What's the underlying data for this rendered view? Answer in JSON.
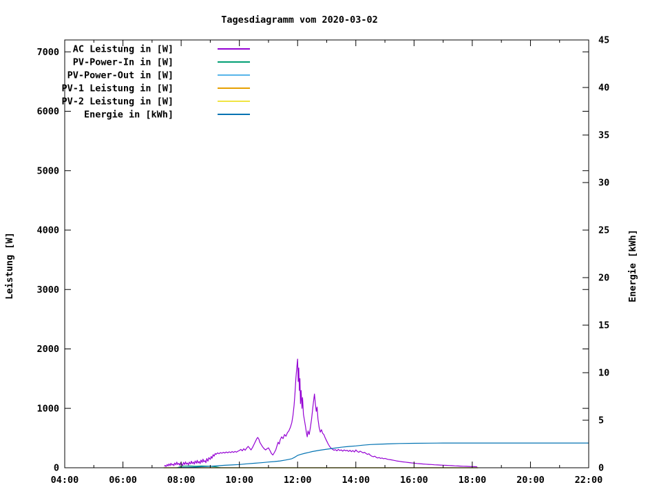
{
  "chart_data": {
    "type": "line",
    "title": "Tagesdiagramm vom 2020-03-02",
    "ylabel": "Leistung [W]",
    "y2label": "Energie [kWh]",
    "xlabel": "",
    "grid": false,
    "legend_position": "top-left-inside",
    "x_axis": {
      "range_hours": [
        4,
        22
      ],
      "major_ticks": [
        {
          "value": 4,
          "label": "04:00"
        },
        {
          "value": 6,
          "label": "06:00"
        },
        {
          "value": 8,
          "label": "08:00"
        },
        {
          "value": 10,
          "label": "10:00"
        },
        {
          "value": 12,
          "label": "12:00"
        },
        {
          "value": 14,
          "label": "14:00"
        },
        {
          "value": 16,
          "label": "16:00"
        },
        {
          "value": 18,
          "label": "18:00"
        },
        {
          "value": 20,
          "label": "20:00"
        },
        {
          "value": 22,
          "label": "22:00"
        }
      ],
      "minor_ticks": [
        5,
        7,
        9,
        11,
        13,
        15,
        17,
        19,
        21
      ]
    },
    "y_axis": {
      "range": [
        0,
        7200
      ],
      "ticks": [
        {
          "value": 0,
          "label": "0"
        },
        {
          "value": 1000,
          "label": "1000"
        },
        {
          "value": 2000,
          "label": "2000"
        },
        {
          "value": 3000,
          "label": "3000"
        },
        {
          "value": 4000,
          "label": "4000"
        },
        {
          "value": 5000,
          "label": "5000"
        },
        {
          "value": 6000,
          "label": "6000"
        },
        {
          "value": 7000,
          "label": "7000"
        }
      ]
    },
    "y2_axis": {
      "range": [
        0,
        45
      ],
      "ticks": [
        {
          "value": 0,
          "label": "0"
        },
        {
          "value": 5,
          "label": "5"
        },
        {
          "value": 10,
          "label": "10"
        },
        {
          "value": 15,
          "label": "15"
        },
        {
          "value": 20,
          "label": "20"
        },
        {
          "value": 25,
          "label": "25"
        },
        {
          "value": 30,
          "label": "30"
        },
        {
          "value": 35,
          "label": "35"
        },
        {
          "value": 40,
          "label": "40"
        },
        {
          "value": 45,
          "label": "45"
        }
      ]
    },
    "series": [
      {
        "id": "ac-leistung",
        "name": "AC Leistung in [W]",
        "color": "#9400d3",
        "axis": "y1",
        "points": [
          [
            7.42,
            25
          ],
          [
            7.45,
            40
          ],
          [
            7.48,
            20
          ],
          [
            7.52,
            55
          ],
          [
            7.55,
            30
          ],
          [
            7.58,
            65
          ],
          [
            7.62,
            35
          ],
          [
            7.65,
            75
          ],
          [
            7.68,
            45
          ],
          [
            7.72,
            60
          ],
          [
            7.75,
            35
          ],
          [
            7.78,
            80
          ],
          [
            7.82,
            50
          ],
          [
            7.85,
            95
          ],
          [
            7.88,
            55
          ],
          [
            7.92,
            75
          ],
          [
            7.95,
            40
          ],
          [
            7.98,
            85
          ],
          [
            8.02,
            60
          ],
          [
            8.05,
            35
          ],
          [
            8.08,
            90
          ],
          [
            8.12,
            55
          ],
          [
            8.15,
            100
          ],
          [
            8.18,
            60
          ],
          [
            8.22,
            80
          ],
          [
            8.25,
            45
          ],
          [
            8.28,
            95
          ],
          [
            8.32,
            65
          ],
          [
            8.35,
            110
          ],
          [
            8.38,
            70
          ],
          [
            8.42,
            95
          ],
          [
            8.45,
            60
          ],
          [
            8.48,
            115
          ],
          [
            8.52,
            75
          ],
          [
            8.55,
            125
          ],
          [
            8.58,
            80
          ],
          [
            8.62,
            105
          ],
          [
            8.65,
            70
          ],
          [
            8.68,
            130
          ],
          [
            8.72,
            90
          ],
          [
            8.75,
            145
          ],
          [
            8.78,
            100
          ],
          [
            8.82,
            120
          ],
          [
            8.85,
            85
          ],
          [
            8.88,
            155
          ],
          [
            8.92,
            110
          ],
          [
            8.95,
            170
          ],
          [
            9.0,
            140
          ],
          [
            9.03,
            190
          ],
          [
            9.06,
            160
          ],
          [
            9.1,
            220
          ],
          [
            9.13,
            195
          ],
          [
            9.17,
            240
          ],
          [
            9.2,
            225
          ],
          [
            9.25,
            250
          ],
          [
            9.3,
            235
          ],
          [
            9.35,
            255
          ],
          [
            9.4,
            245
          ],
          [
            9.45,
            260
          ],
          [
            9.5,
            248
          ],
          [
            9.55,
            265
          ],
          [
            9.6,
            252
          ],
          [
            9.65,
            268
          ],
          [
            9.7,
            255
          ],
          [
            9.75,
            272
          ],
          [
            9.8,
            258
          ],
          [
            9.85,
            275
          ],
          [
            9.9,
            262
          ],
          [
            9.95,
            280
          ],
          [
            10.0,
            290
          ],
          [
            10.05,
            310
          ],
          [
            10.1,
            285
          ],
          [
            10.15,
            320
          ],
          [
            10.2,
            295
          ],
          [
            10.25,
            330
          ],
          [
            10.3,
            360
          ],
          [
            10.35,
            330
          ],
          [
            10.4,
            300
          ],
          [
            10.45,
            340
          ],
          [
            10.5,
            390
          ],
          [
            10.55,
            440
          ],
          [
            10.6,
            490
          ],
          [
            10.63,
            510
          ],
          [
            10.67,
            480
          ],
          [
            10.7,
            430
          ],
          [
            10.75,
            390
          ],
          [
            10.8,
            350
          ],
          [
            10.85,
            320
          ],
          [
            10.9,
            300
          ],
          [
            10.95,
            320
          ],
          [
            11.0,
            335
          ],
          [
            11.05,
            290
          ],
          [
            11.1,
            240
          ],
          [
            11.15,
            215
          ],
          [
            11.2,
            255
          ],
          [
            11.25,
            300
          ],
          [
            11.3,
            380
          ],
          [
            11.33,
            430
          ],
          [
            11.37,
            400
          ],
          [
            11.4,
            470
          ],
          [
            11.45,
            520
          ],
          [
            11.5,
            490
          ],
          [
            11.55,
            560
          ],
          [
            11.6,
            530
          ],
          [
            11.65,
            590
          ],
          [
            11.7,
            620
          ],
          [
            11.75,
            680
          ],
          [
            11.8,
            760
          ],
          [
            11.84,
            880
          ],
          [
            11.88,
            1050
          ],
          [
            11.91,
            1250
          ],
          [
            11.94,
            1500
          ],
          [
            11.97,
            1680
          ],
          [
            12.0,
            1830
          ],
          [
            12.02,
            1450
          ],
          [
            12.04,
            1680
          ],
          [
            12.06,
            1300
          ],
          [
            12.08,
            1500
          ],
          [
            12.1,
            1080
          ],
          [
            12.12,
            1300
          ],
          [
            12.15,
            1000
          ],
          [
            12.17,
            1180
          ],
          [
            12.2,
            900
          ],
          [
            12.23,
            820
          ],
          [
            12.27,
            700
          ],
          [
            12.3,
            600
          ],
          [
            12.33,
            520
          ],
          [
            12.36,
            620
          ],
          [
            12.4,
            560
          ],
          [
            12.44,
            680
          ],
          [
            12.48,
            820
          ],
          [
            12.52,
            1000
          ],
          [
            12.55,
            1130
          ],
          [
            12.58,
            1240
          ],
          [
            12.61,
            1080
          ],
          [
            12.64,
            950
          ],
          [
            12.67,
            1020
          ],
          [
            12.7,
            820
          ],
          [
            12.74,
            680
          ],
          [
            12.78,
            600
          ],
          [
            12.82,
            640
          ],
          [
            12.86,
            580
          ],
          [
            12.9,
            560
          ],
          [
            12.95,
            500
          ],
          [
            13.0,
            450
          ],
          [
            13.05,
            400
          ],
          [
            13.1,
            360
          ],
          [
            13.15,
            330
          ],
          [
            13.2,
            310
          ],
          [
            13.25,
            295
          ],
          [
            13.3,
            305
          ],
          [
            13.35,
            285
          ],
          [
            13.4,
            310
          ],
          [
            13.45,
            290
          ],
          [
            13.5,
            300
          ],
          [
            13.55,
            280
          ],
          [
            13.6,
            300
          ],
          [
            13.65,
            285
          ],
          [
            13.7,
            295
          ],
          [
            13.75,
            275
          ],
          [
            13.8,
            295
          ],
          [
            13.85,
            270
          ],
          [
            13.9,
            290
          ],
          [
            13.95,
            265
          ],
          [
            14.0,
            300
          ],
          [
            14.05,
            275
          ],
          [
            14.1,
            260
          ],
          [
            14.15,
            280
          ],
          [
            14.2,
            265
          ],
          [
            14.25,
            250
          ],
          [
            14.3,
            260
          ],
          [
            14.35,
            240
          ],
          [
            14.4,
            225
          ],
          [
            14.45,
            235
          ],
          [
            14.5,
            210
          ],
          [
            14.55,
            195
          ],
          [
            14.6,
            185
          ],
          [
            14.65,
            195
          ],
          [
            14.7,
            175
          ],
          [
            14.75,
            165
          ],
          [
            14.8,
            172
          ],
          [
            14.85,
            158
          ],
          [
            14.9,
            165
          ],
          [
            14.95,
            152
          ],
          [
            15.0,
            158
          ],
          [
            15.1,
            142
          ],
          [
            15.2,
            135
          ],
          [
            15.3,
            125
          ],
          [
            15.4,
            115
          ],
          [
            15.5,
            108
          ],
          [
            15.6,
            100
          ],
          [
            15.7,
            95
          ],
          [
            15.8,
            88
          ],
          [
            15.9,
            82
          ],
          [
            16.0,
            78
          ],
          [
            16.1,
            72
          ],
          [
            16.2,
            68
          ],
          [
            16.3,
            64
          ],
          [
            16.4,
            60
          ],
          [
            16.5,
            57
          ],
          [
            16.6,
            54
          ],
          [
            16.7,
            50
          ],
          [
            16.8,
            48
          ],
          [
            16.9,
            45
          ],
          [
            17.0,
            43
          ],
          [
            17.1,
            40
          ],
          [
            17.2,
            38
          ],
          [
            17.3,
            36
          ],
          [
            17.4,
            33
          ],
          [
            17.5,
            30
          ],
          [
            17.6,
            28
          ],
          [
            17.7,
            26
          ],
          [
            17.8,
            24
          ],
          [
            17.9,
            22
          ],
          [
            18.0,
            20
          ],
          [
            18.1,
            18
          ],
          [
            18.17,
            15
          ]
        ]
      },
      {
        "id": "pv-power-in",
        "name": "PV-Power-In in [W]",
        "color": "#009e73",
        "axis": "y1",
        "points": [
          [
            7.9,
            8
          ],
          [
            8.0,
            22
          ],
          [
            8.1,
            28
          ],
          [
            8.3,
            30
          ],
          [
            8.5,
            27
          ],
          [
            8.7,
            30
          ],
          [
            8.9,
            28
          ],
          [
            9.0,
            25
          ],
          [
            9.1,
            22
          ],
          [
            9.2,
            15
          ],
          [
            9.3,
            6
          ],
          [
            9.35,
            0
          ]
        ]
      },
      {
        "id": "pv-power-out",
        "name": "PV-Power-Out in [W]",
        "color": "#56b4e9",
        "axis": "y1",
        "points": [
          [
            7.4,
            0
          ],
          [
            18.2,
            0
          ]
        ]
      },
      {
        "id": "pv1-leistung",
        "name": "PV-1 Leistung in [W]",
        "color": "#e69f00",
        "axis": "y1",
        "points": [
          [
            7.4,
            0
          ],
          [
            18.2,
            0
          ]
        ]
      },
      {
        "id": "pv2-leistung",
        "name": "PV-2 Leistung in [W]",
        "color": "#f0e442",
        "axis": "y1",
        "points": [
          [
            7.4,
            0
          ],
          [
            18.2,
            0
          ]
        ]
      },
      {
        "id": "energie",
        "name": "Energie in [kWh]",
        "color": "#0072b2",
        "axis": "y2",
        "points": [
          [
            7.85,
            0.01
          ],
          [
            8.0,
            0.02
          ],
          [
            8.25,
            0.05
          ],
          [
            8.5,
            0.08
          ],
          [
            8.75,
            0.12
          ],
          [
            9.0,
            0.16
          ],
          [
            9.25,
            0.21
          ],
          [
            9.5,
            0.26
          ],
          [
            9.75,
            0.3
          ],
          [
            10.0,
            0.34
          ],
          [
            10.25,
            0.41
          ],
          [
            10.5,
            0.47
          ],
          [
            10.75,
            0.53
          ],
          [
            11.0,
            0.6
          ],
          [
            11.2,
            0.65
          ],
          [
            11.4,
            0.72
          ],
          [
            11.6,
            0.82
          ],
          [
            11.8,
            0.95
          ],
          [
            11.9,
            1.1
          ],
          [
            12.0,
            1.3
          ],
          [
            12.1,
            1.4
          ],
          [
            12.25,
            1.52
          ],
          [
            12.4,
            1.62
          ],
          [
            12.5,
            1.7
          ],
          [
            12.75,
            1.84
          ],
          [
            13.0,
            1.95
          ],
          [
            13.25,
            2.06
          ],
          [
            13.5,
            2.16
          ],
          [
            13.75,
            2.24
          ],
          [
            14.0,
            2.3
          ],
          [
            14.25,
            2.38
          ],
          [
            14.5,
            2.44
          ],
          [
            14.75,
            2.47
          ],
          [
            15.0,
            2.5
          ],
          [
            15.25,
            2.53
          ],
          [
            15.5,
            2.55
          ],
          [
            16.0,
            2.57
          ],
          [
            16.5,
            2.59
          ],
          [
            17.0,
            2.6
          ],
          [
            22.0,
            2.6
          ]
        ]
      }
    ]
  }
}
